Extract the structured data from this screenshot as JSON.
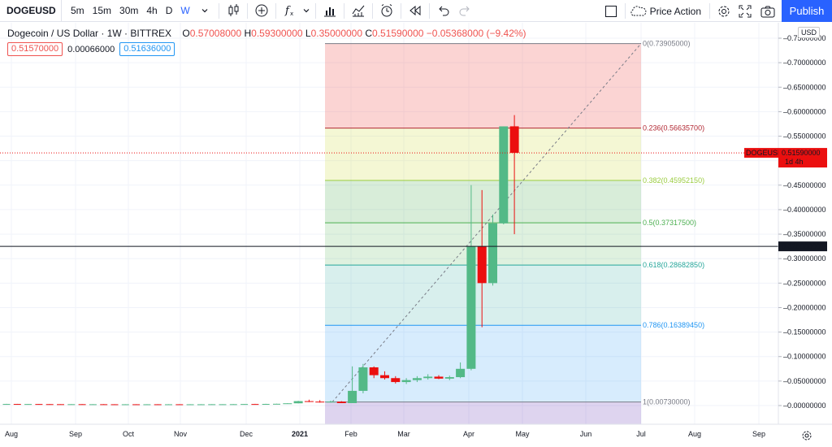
{
  "toolbar": {
    "symbol": "DOGEUSD",
    "timeframes": [
      "5m",
      "15m",
      "30m",
      "4h",
      "D",
      "W"
    ],
    "active_timeframe": "W",
    "layout_name": "Price Action",
    "publish_label": "Publish",
    "icons": [
      "chevron-down-icon",
      "candles-icon",
      "add-compare-icon",
      "indicators-icon",
      "templates-icon",
      "alert-icon",
      "replay-icon",
      "undo-icon",
      "redo-icon",
      "layout-icon",
      "cloud-icon",
      "settings-icon",
      "fullscreen-icon",
      "camera-icon"
    ]
  },
  "legend": {
    "title": "Dogecoin / US Dollar · 1W · BITTREX",
    "o_label": "O",
    "o": "0.57008000",
    "h_label": "H",
    "h": "0.59300000",
    "l_label": "L",
    "l": "0.35000000",
    "c_label": "C",
    "c": "0.51590000",
    "change": "−0.05368000 (−9.42%)",
    "bid": "0.51570000",
    "spread": "0.00066000",
    "ask": "0.51636000"
  },
  "price_scale": {
    "currency": "USD",
    "ticks": [
      "0.75000000",
      "0.70000000",
      "0.65000000",
      "0.60000000",
      "0.55000000",
      "0.50000000",
      "0.45000000",
      "0.40000000",
      "0.35000000",
      "0.30000000",
      "0.25000000",
      "0.20000000",
      "0.15000000",
      "0.10000000",
      "0.05000000",
      "-0.00000000"
    ],
    "last_price_symbol": "DOGEUSD",
    "last_price": "0.51590000",
    "countdown": "1d 4h",
    "hline_price": "0.32500000"
  },
  "time_scale": {
    "labels": [
      "Aug",
      "Sep",
      "Oct",
      "Nov",
      "Dec",
      "2021",
      "Feb",
      "Mar",
      "Apr",
      "May",
      "Jun",
      "Jul",
      "Aug",
      "Sep"
    ]
  },
  "fib_levels": [
    {
      "label": "0(0.73905000)",
      "price": 0.73905,
      "color": "#787b86"
    },
    {
      "label": "0.236(0.56635700)",
      "price": 0.566357,
      "color": "#b22833"
    },
    {
      "label": "0.382(0.45952150)",
      "price": 0.4595215,
      "color": "#9acc3f"
    },
    {
      "label": "0.5(0.37317500)",
      "price": 0.373175,
      "color": "#4caf50"
    },
    {
      "label": "0.618(0.28682850)",
      "price": 0.2868285,
      "color": "#26a69a"
    },
    {
      "label": "0.786(0.16389450)",
      "price": 0.1638945,
      "color": "#2196f3"
    },
    {
      "label": "1(0.00730000)",
      "price": 0.0073,
      "color": "#787b86"
    }
  ],
  "candles": [
    {
      "t": 0,
      "o": 0.003,
      "h": 0.0035,
      "l": 0.0028,
      "c": 0.0032
    },
    {
      "t": 1,
      "o": 0.0032,
      "h": 0.0034,
      "l": 0.0029,
      "c": 0.003
    },
    {
      "t": 2,
      "o": 0.003,
      "h": 0.0033,
      "l": 0.0028,
      "c": 0.0031
    },
    {
      "t": 3,
      "o": 0.0031,
      "h": 0.0033,
      "l": 0.0028,
      "c": 0.0029
    },
    {
      "t": 4,
      "o": 0.0029,
      "h": 0.0031,
      "l": 0.0027,
      "c": 0.0028
    },
    {
      "t": 5,
      "o": 0.0028,
      "h": 0.003,
      "l": 0.0026,
      "c": 0.0027
    },
    {
      "t": 6,
      "o": 0.0027,
      "h": 0.003,
      "l": 0.0026,
      "c": 0.0028
    },
    {
      "t": 7,
      "o": 0.0028,
      "h": 0.0029,
      "l": 0.0025,
      "c": 0.0026
    },
    {
      "t": 8,
      "o": 0.0026,
      "h": 0.0028,
      "l": 0.0025,
      "c": 0.0027
    },
    {
      "t": 9,
      "o": 0.0027,
      "h": 0.0029,
      "l": 0.0025,
      "c": 0.0026
    },
    {
      "t": 10,
      "o": 0.0026,
      "h": 0.0027,
      "l": 0.0024,
      "c": 0.0025
    },
    {
      "t": 11,
      "o": 0.0025,
      "h": 0.0027,
      "l": 0.0024,
      "c": 0.0026
    },
    {
      "t": 12,
      "o": 0.0026,
      "h": 0.0027,
      "l": 0.0024,
      "c": 0.0025
    },
    {
      "t": 13,
      "o": 0.0025,
      "h": 0.0027,
      "l": 0.0024,
      "c": 0.0026
    },
    {
      "t": 14,
      "o": 0.0026,
      "h": 0.0027,
      "l": 0.0024,
      "c": 0.0025
    },
    {
      "t": 15,
      "o": 0.0025,
      "h": 0.0027,
      "l": 0.0025,
      "c": 0.0026
    },
    {
      "t": 16,
      "o": 0.0026,
      "h": 0.0027,
      "l": 0.0025,
      "c": 0.0025
    },
    {
      "t": 17,
      "o": 0.0025,
      "h": 0.0027,
      "l": 0.0025,
      "c": 0.0026
    },
    {
      "t": 18,
      "o": 0.0026,
      "h": 0.0028,
      "l": 0.0025,
      "c": 0.0026
    },
    {
      "t": 19,
      "o": 0.0026,
      "h": 0.0028,
      "l": 0.0025,
      "c": 0.0027
    },
    {
      "t": 20,
      "o": 0.0027,
      "h": 0.0029,
      "l": 0.0026,
      "c": 0.0027
    },
    {
      "t": 21,
      "o": 0.0027,
      "h": 0.003,
      "l": 0.0026,
      "c": 0.0028
    },
    {
      "t": 22,
      "o": 0.0028,
      "h": 0.0032,
      "l": 0.0027,
      "c": 0.0031
    },
    {
      "t": 23,
      "o": 0.0031,
      "h": 0.0035,
      "l": 0.003,
      "c": 0.003
    },
    {
      "t": 24,
      "o": 0.003,
      "h": 0.0036,
      "l": 0.0029,
      "c": 0.0033
    },
    {
      "t": 25,
      "o": 0.0033,
      "h": 0.0038,
      "l": 0.0032,
      "c": 0.0036
    },
    {
      "t": 26,
      "o": 0.0036,
      "h": 0.0048,
      "l": 0.0035,
      "c": 0.0046
    },
    {
      "t": 27,
      "o": 0.0046,
      "h": 0.0097,
      "l": 0.0044,
      "c": 0.009
    },
    {
      "t": 28,
      "o": 0.009,
      "h": 0.012,
      "l": 0.007,
      "c": 0.008
    },
    {
      "t": 29,
      "o": 0.008,
      "h": 0.011,
      "l": 0.006,
      "c": 0.007
    },
    {
      "t": 30,
      "o": 0.007,
      "h": 0.01,
      "l": 0.006,
      "c": 0.008
    },
    {
      "t": 31,
      "o": 0.008,
      "h": 0.009,
      "l": 0.005,
      "c": 0.005
    },
    {
      "t": 32,
      "o": 0.005,
      "h": 0.08,
      "l": 0.005,
      "c": 0.03
    },
    {
      "t": 33,
      "o": 0.03,
      "h": 0.085,
      "l": 0.025,
      "c": 0.078
    },
    {
      "t": 34,
      "o": 0.078,
      "h": 0.08,
      "l": 0.056,
      "c": 0.062
    },
    {
      "t": 35,
      "o": 0.062,
      "h": 0.07,
      "l": 0.053,
      "c": 0.056
    },
    {
      "t": 36,
      "o": 0.056,
      "h": 0.06,
      "l": 0.045,
      "c": 0.048
    },
    {
      "t": 37,
      "o": 0.048,
      "h": 0.056,
      "l": 0.044,
      "c": 0.052
    },
    {
      "t": 38,
      "o": 0.052,
      "h": 0.06,
      "l": 0.048,
      "c": 0.056
    },
    {
      "t": 39,
      "o": 0.056,
      "h": 0.064,
      "l": 0.053,
      "c": 0.059
    },
    {
      "t": 40,
      "o": 0.059,
      "h": 0.062,
      "l": 0.054,
      "c": 0.055
    },
    {
      "t": 41,
      "o": 0.055,
      "h": 0.061,
      "l": 0.052,
      "c": 0.058
    },
    {
      "t": 42,
      "o": 0.058,
      "h": 0.088,
      "l": 0.056,
      "c": 0.075
    },
    {
      "t": 43,
      "o": 0.075,
      "h": 0.45,
      "l": 0.072,
      "c": 0.325
    },
    {
      "t": 44,
      "o": 0.325,
      "h": 0.44,
      "l": 0.16,
      "c": 0.25
    },
    {
      "t": 45,
      "o": 0.25,
      "h": 0.39,
      "l": 0.245,
      "c": 0.372
    },
    {
      "t": 46,
      "o": 0.372,
      "h": 0.57,
      "l": 0.37,
      "c": 0.57
    },
    {
      "t": 47,
      "o": 0.57008,
      "h": 0.593,
      "l": 0.35,
      "c": 0.5159
    }
  ]
}
